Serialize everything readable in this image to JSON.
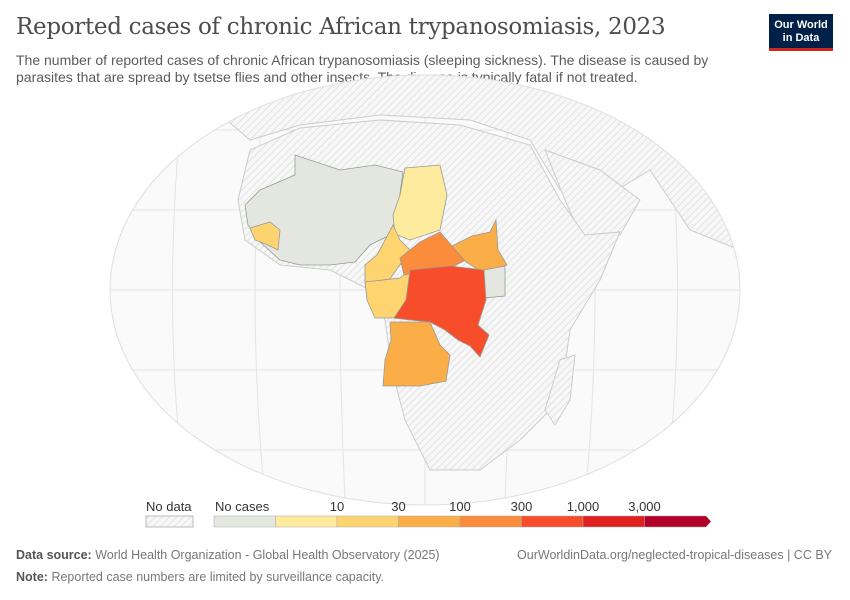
{
  "header": {
    "title": "Reported cases of chronic African trypanosomiasis, 2023",
    "subtitle": "The number of reported cases of chronic African trypanosomiasis (sleeping sickness). The disease is caused by parasites that are spread by tsetse flies and other insects. The disease is typically fatal if not treated.",
    "logo": "Our World in Data"
  },
  "legend": {
    "no_data_label": "No data",
    "no_cases_label": "No cases",
    "ticks": [
      "10",
      "30",
      "100",
      "300",
      "1,000",
      "3,000"
    ],
    "colors": {
      "no_data": "#f2f2f2",
      "bins": [
        "#e3e7df",
        "#feeb9e",
        "#fed470",
        "#fbad48",
        "#fa8c3b",
        "#f84d2b",
        "#e01f1f",
        "#b2002b"
      ]
    }
  },
  "footer": {
    "source_label": "Data source:",
    "source": "World Health Organization - Global Health Observatory (2025)",
    "url": "OurWorldinData.org/neglected-tropical-diseases | CC BY",
    "note_label": "Note:",
    "note": "Reported case numbers are limited by surveillance capacity."
  }
}
